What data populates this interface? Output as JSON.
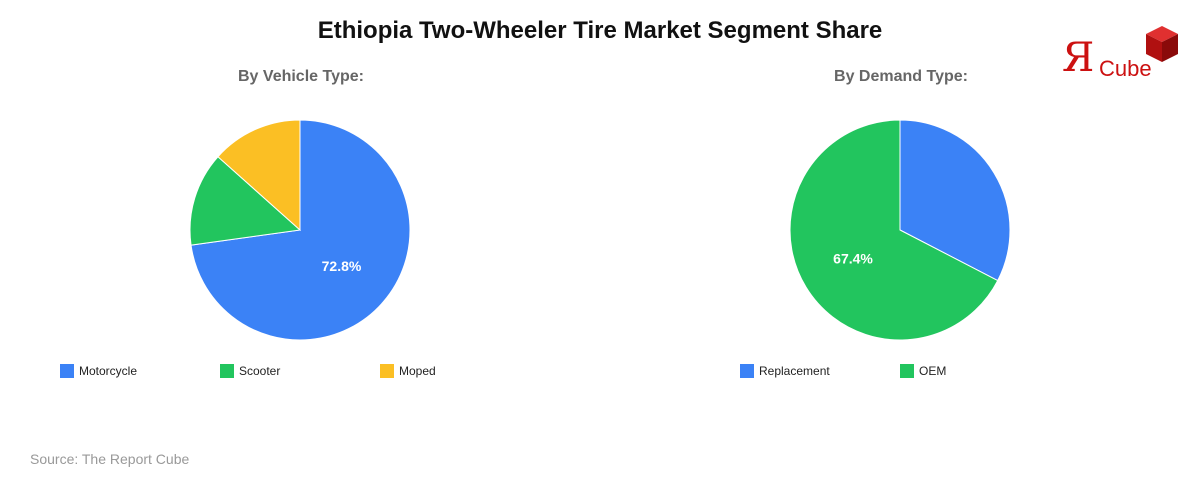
{
  "title": "Ethiopia Two-Wheeler Tire Market Segment Share",
  "source": "Source: The Report Cube",
  "logo": {
    "r_glyph": "Я",
    "text": "Cube",
    "color": "#cc1111"
  },
  "chart_data": [
    {
      "type": "pie",
      "title": "By Vehicle Type:",
      "categories": [
        "Motorcycle",
        "Scooter",
        "Moped"
      ],
      "values": [
        72.8,
        13.8,
        13.4
      ],
      "colors": [
        "#3b82f6",
        "#22c55e",
        "#fbbf24"
      ],
      "data_labels": [
        "72.8%",
        "",
        ""
      ],
      "legend_position": "bottom-left"
    },
    {
      "type": "pie",
      "title": "By Demand Type:",
      "categories": [
        "Replacement",
        "OEM"
      ],
      "values": [
        32.6,
        67.4
      ],
      "colors": [
        "#3b82f6",
        "#22c55e"
      ],
      "data_labels": [
        "",
        "67.4%"
      ],
      "legend_position": "bottom-left"
    }
  ]
}
